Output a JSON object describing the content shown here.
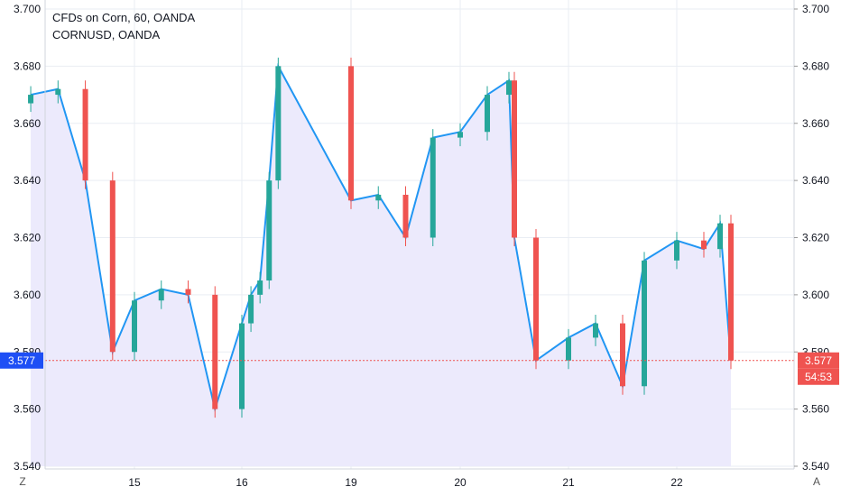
{
  "legend": {
    "title": "CFDs on Corn, 60, OANDA",
    "symbol": "CORNUSD, OANDA"
  },
  "buttons": {
    "left_scale": "Z",
    "right_scale": "A"
  },
  "colors": {
    "up": "#26a69a",
    "down": "#ef5350",
    "line": "#2196f3",
    "area": "#eceafc",
    "last_price_line": "#ef5350",
    "left_badge": "#1e4ff5",
    "grid": "#e9edf3"
  },
  "price_labels": {
    "left_current": "3.577",
    "right_current": "3.577",
    "countdown": "54:53"
  },
  "chart_data": {
    "type": "candlestick",
    "title": "CFDs on Corn, 60, OANDA",
    "symbol": "CORNUSD, OANDA",
    "ylim": [
      3.54,
      3.7
    ],
    "y_ticks": [
      "3.700",
      "3.680",
      "3.660",
      "3.640",
      "3.620",
      "3.600",
      "3.580",
      "3.560",
      "3.540"
    ],
    "x_ticks": [
      "15",
      "16",
      "19",
      "20",
      "21",
      "22"
    ],
    "last_price": 3.577,
    "x": [
      14.05,
      14.3,
      14.55,
      14.8,
      15.0,
      15.25,
      15.5,
      15.75,
      16.0,
      16.25,
      16.5,
      16.75,
      17.0,
      19.0,
      19.25,
      19.5,
      19.75,
      20.0,
      20.25,
      20.45,
      20.5,
      20.7,
      21.0,
      21.25,
      21.5,
      21.7,
      22.0,
      22.25,
      22.4,
      22.5
    ],
    "series": [
      {
        "name": "CORNUSD",
        "close": [
          3.67,
          3.672,
          3.64,
          3.58,
          3.598,
          3.602,
          3.6,
          3.56,
          3.59,
          3.6,
          3.605,
          3.64,
          3.68,
          3.633,
          3.635,
          3.62,
          3.655,
          3.657,
          3.67,
          3.675,
          3.62,
          3.577,
          3.585,
          3.59,
          3.568,
          3.612,
          3.619,
          3.616,
          3.625,
          3.577
        ]
      }
    ]
  }
}
